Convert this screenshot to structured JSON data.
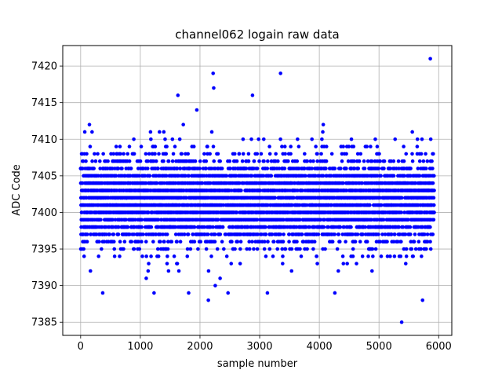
{
  "chart_data": {
    "type": "scatter",
    "title": "channel062 logain raw data",
    "xlabel": "sample number",
    "ylabel": "ADC Code",
    "xlim": [
      -300,
      6220
    ],
    "ylim": [
      7383.2,
      7422.8
    ],
    "xticks": [
      0,
      1000,
      2000,
      3000,
      4000,
      5000,
      6000
    ],
    "yticks": [
      7385,
      7390,
      7395,
      7400,
      7405,
      7410,
      7415,
      7420
    ],
    "grid": true,
    "marker_color": "#0000ff",
    "series": [
      {
        "n_samples": 5926,
        "typical_range": [
          7393,
          7408
        ],
        "values_shown": "Integer ADC codes per sample; dense band 7393–7408 across all samples",
        "extremes": [
          {
            "x": 5860,
            "y": 7421
          },
          {
            "x": 2220,
            "y": 7419
          },
          {
            "x": 3350,
            "y": 7419
          },
          {
            "x": 2230,
            "y": 7417
          },
          {
            "x": 1630,
            "y": 7416
          },
          {
            "x": 2880,
            "y": 7416
          },
          {
            "x": 5380,
            "y": 7385
          },
          {
            "x": 2140,
            "y": 7388
          },
          {
            "x": 5730,
            "y": 7388
          },
          {
            "x": 370,
            "y": 7389
          },
          {
            "x": 1230,
            "y": 7389
          },
          {
            "x": 1810,
            "y": 7389
          },
          {
            "x": 2470,
            "y": 7389
          },
          {
            "x": 3130,
            "y": 7389
          },
          {
            "x": 4260,
            "y": 7389
          }
        ]
      }
    ]
  }
}
